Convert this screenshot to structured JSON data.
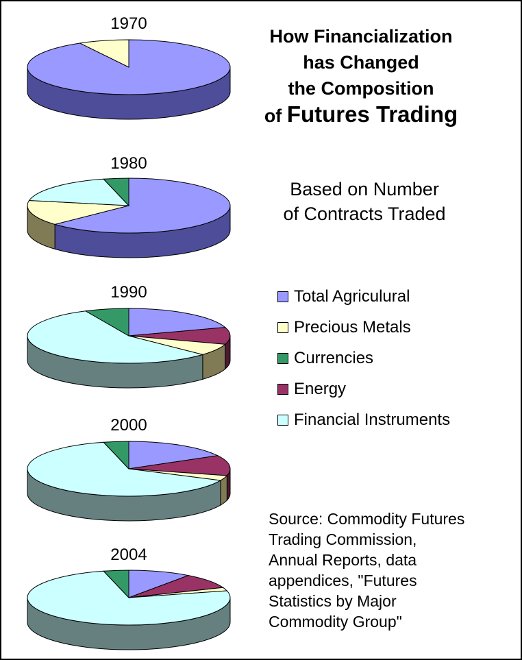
{
  "title": {
    "line1": "How Financialization",
    "line2": "has Changed",
    "line3": "the Composition",
    "line4_prefix": "of",
    "line4_emphasis": "Futures Trading"
  },
  "subtitle": {
    "line1": "Based on Number",
    "line2": "of Contracts Traded"
  },
  "source": {
    "line1": "Source: Commodity Futures",
    "line2": "Trading Commission,",
    "line3": "Annual Reports, data",
    "line4": "appendices, \"Futures",
    "line5": "Statistics by Major",
    "line6": "Commodity Group\""
  },
  "chart_data": {
    "type": "pie",
    "style": "3d",
    "categories": [
      "Total Agricular",
      "Precious Metals",
      "Currencies",
      "Energy",
      "Financial Instruments"
    ],
    "legend_labels": [
      "Total Agriculural",
      "Precious Metals",
      "Currencies",
      "Energy",
      "Financial Instruments"
    ],
    "legend_placement": "right",
    "colors": {
      "Total Agricular": "#9999ff",
      "Precious Metals": "#ffffcc",
      "Currencies": "#339966",
      "Energy": "#993366",
      "Financial Instruments": "#ccffff"
    },
    "side_colors": {
      "Total Agricular": "#4d4d99",
      "Precious Metals": "#807a55",
      "Currencies": "#1a4d33",
      "Energy": "#4d1a33",
      "Financial Instruments": "#668080"
    },
    "pies": [
      {
        "year": "1970",
        "slices": [
          {
            "name": "Total Agricular",
            "value": 92
          },
          {
            "name": "Precious Metals",
            "value": 8
          }
        ]
      },
      {
        "year": "1980",
        "slices": [
          {
            "name": "Total Agricular",
            "value": 63
          },
          {
            "name": "Precious Metals",
            "value": 15
          },
          {
            "name": "Financial Instruments",
            "value": 18
          },
          {
            "name": "Currencies",
            "value": 4
          }
        ]
      },
      {
        "year": "1990",
        "slices": [
          {
            "name": "Total Agricular",
            "value": 20
          },
          {
            "name": "Energy",
            "value": 10
          },
          {
            "name": "Precious Metals",
            "value": 7
          },
          {
            "name": "Financial Instruments",
            "value": 56
          },
          {
            "name": "Currencies",
            "value": 7
          }
        ]
      },
      {
        "year": "2000",
        "slices": [
          {
            "name": "Total Agricular",
            "value": 17
          },
          {
            "name": "Energy",
            "value": 12
          },
          {
            "name": "Precious Metals",
            "value": 3
          },
          {
            "name": "Financial Instruments",
            "value": 64
          },
          {
            "name": "Currencies",
            "value": 4
          }
        ]
      },
      {
        "year": "2004",
        "slices": [
          {
            "name": "Total Agricular",
            "value": 10
          },
          {
            "name": "Energy",
            "value": 9
          },
          {
            "name": "Precious Metals",
            "value": 2
          },
          {
            "name": "Financial Instruments",
            "value": 75
          },
          {
            "name": "Currencies",
            "value": 4
          }
        ]
      }
    ]
  }
}
